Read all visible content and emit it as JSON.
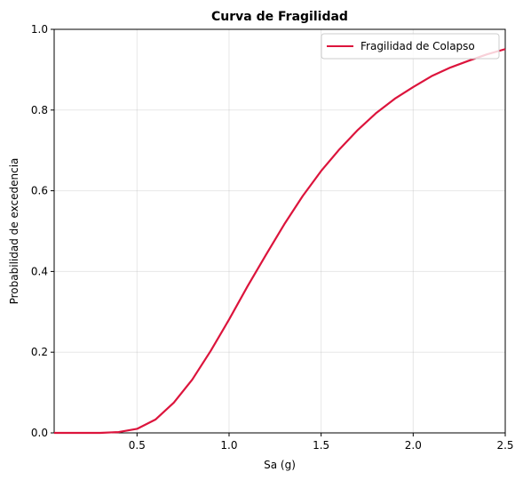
{
  "chart_data": {
    "type": "line",
    "title": "Curva de Fragilidad",
    "xlabel": "Sa (g)",
    "ylabel": "Probabilidad de excedencia",
    "xlim": [
      0.05,
      2.5
    ],
    "ylim": [
      0.0,
      1.0
    ],
    "x_ticks": [
      0.5,
      1.0,
      1.5,
      2.0,
      2.5
    ],
    "x_tick_labels": [
      "0.5",
      "1.0",
      "1.5",
      "2.0",
      "2.5"
    ],
    "y_ticks": [
      0.0,
      0.2,
      0.4,
      0.6,
      0.8,
      1.0
    ],
    "y_tick_labels": [
      "0.0",
      "0.2",
      "0.4",
      "0.6",
      "0.8",
      "1.0"
    ],
    "grid": true,
    "legend_position": "top-right",
    "series": [
      {
        "name": "Fragilidad de Colapso",
        "color": "#dc143c",
        "x": [
          0.05,
          0.1,
          0.2,
          0.3,
          0.4,
          0.5,
          0.6,
          0.7,
          0.8,
          0.9,
          1.0,
          1.1,
          1.2,
          1.3,
          1.4,
          1.5,
          1.6,
          1.7,
          1.8,
          1.9,
          2.0,
          2.1,
          2.2,
          2.3,
          2.4,
          2.5
        ],
        "y": [
          0.0,
          0.0,
          0.0,
          0.0,
          0.002,
          0.01,
          0.033,
          0.075,
          0.132,
          0.203,
          0.281,
          0.363,
          0.441,
          0.517,
          0.587,
          0.649,
          0.703,
          0.751,
          0.793,
          0.828,
          0.857,
          0.884,
          0.905,
          0.922,
          0.938,
          0.951
        ]
      }
    ]
  }
}
